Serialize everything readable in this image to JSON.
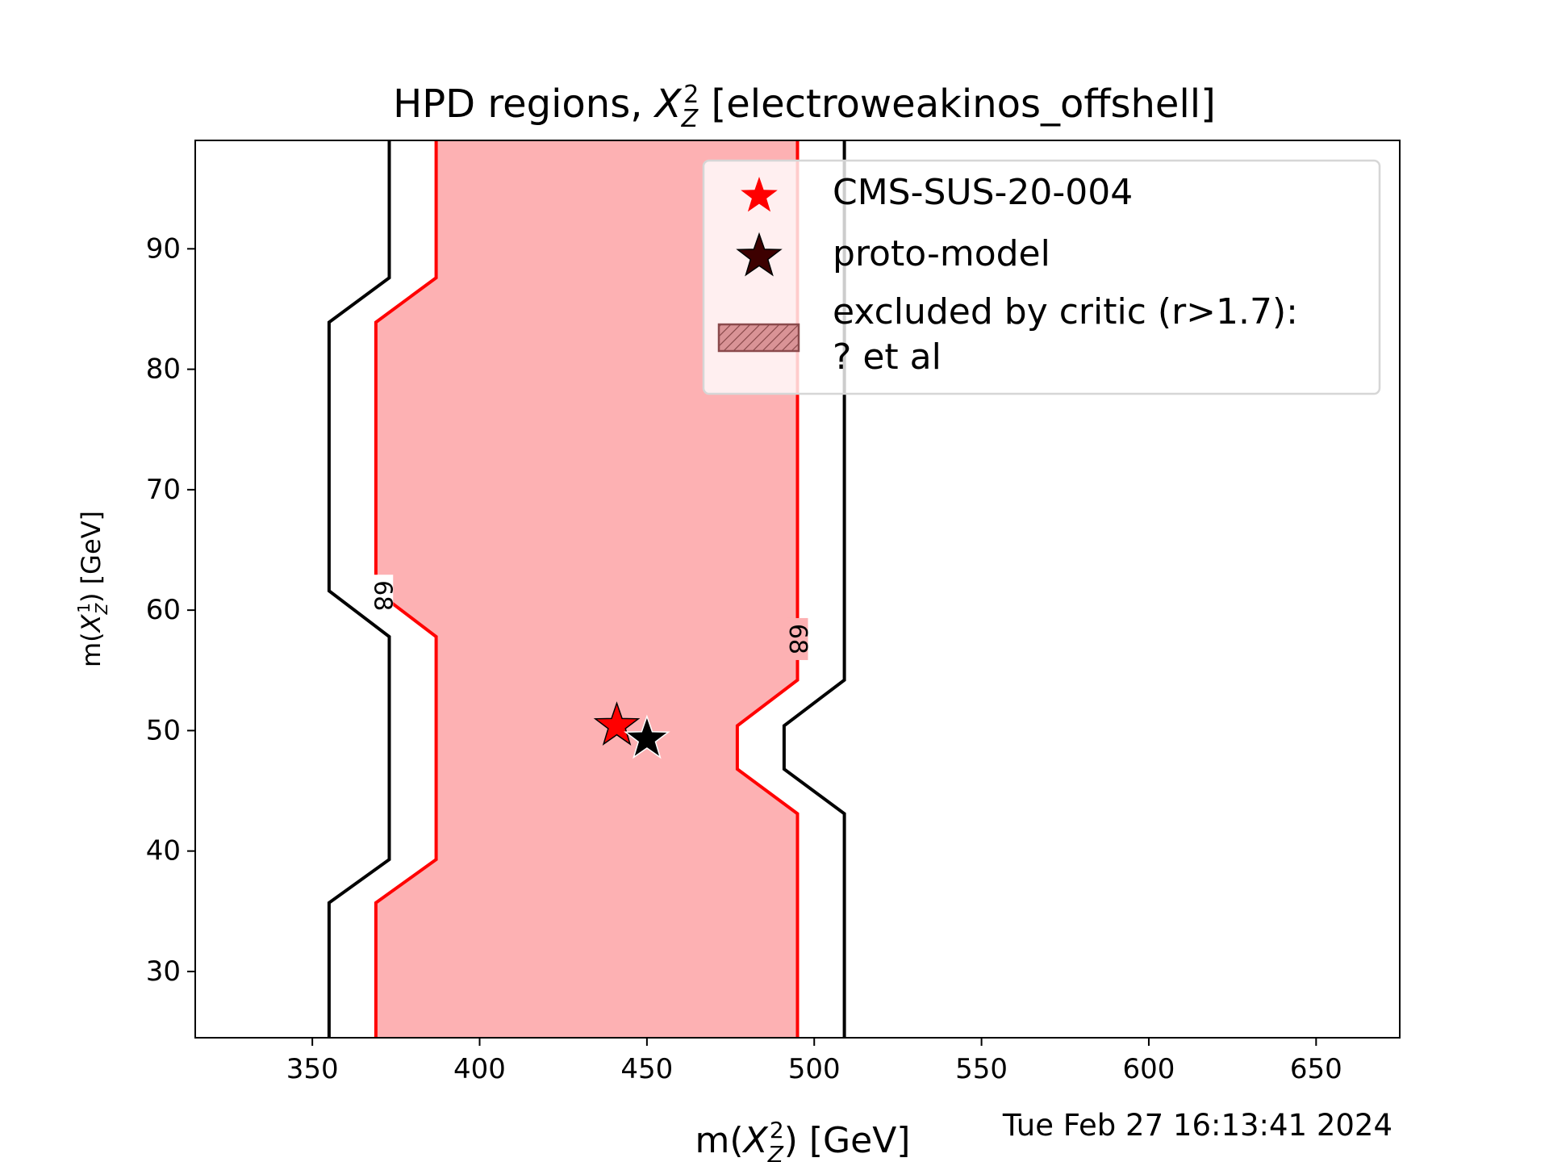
{
  "chart_data": {
    "type": "contour",
    "title_prefix": "HPD regions, ",
    "title_symbol": "X",
    "title_sub": "Z",
    "title_sup": "2",
    "title_suffix": " [electroweakinos_offshell]",
    "xlabel_prefix": "m(",
    "xlabel_symbol": "X",
    "xlabel_sub": "Z",
    "xlabel_sup": "2",
    "xlabel_suffix": ") [GeV]",
    "ylabel_prefix": "m(",
    "ylabel_symbol": "X",
    "ylabel_sub": "Z",
    "ylabel_sup": "1",
    "ylabel_suffix": ") [GeV]",
    "xlim": [
      315,
      675
    ],
    "ylim": [
      24.5,
      99
    ],
    "xticks": [
      350,
      400,
      450,
      500,
      550,
      600,
      650
    ],
    "yticks": [
      30,
      40,
      50,
      60,
      70,
      80,
      90
    ],
    "colors": {
      "fill_68": "#fdb1b3",
      "line_68": "#ff0000",
      "line_outer": "#000000",
      "star_cms": "#ff0000",
      "star_proto": "#000000",
      "legend_proto": "#3d0000",
      "hatch": "#c97a7c",
      "timestamp": "#808080"
    },
    "contours": [
      {
        "name": "68",
        "left": [
          [
            369,
            24.5
          ],
          [
            369,
            35.7
          ],
          [
            387,
            39.3
          ],
          [
            387,
            57.8
          ],
          [
            369,
            61.6
          ],
          [
            369,
            83.9
          ],
          [
            387,
            87.6
          ],
          [
            387,
            99
          ]
        ],
        "right": [
          [
            495,
            24.5
          ],
          [
            495,
            43.1
          ],
          [
            477,
            46.8
          ],
          [
            477,
            50.4
          ],
          [
            495,
            54.2
          ],
          [
            495,
            99
          ]
        ],
        "labels": [
          {
            "text": "68",
            "x": 371,
            "y": 61.2,
            "rotation": 90
          },
          {
            "text": "68",
            "x": 495,
            "y": 57.6,
            "rotation": 90
          }
        ]
      },
      {
        "name": "outer",
        "left": [
          [
            355,
            24.5
          ],
          [
            355,
            35.7
          ],
          [
            373,
            39.3
          ],
          [
            373,
            57.8
          ],
          [
            355,
            61.6
          ],
          [
            355,
            83.9
          ],
          [
            373,
            87.6
          ],
          [
            373,
            99
          ]
        ],
        "right": [
          [
            509,
            24.5
          ],
          [
            509,
            43.1
          ],
          [
            491,
            46.8
          ],
          [
            491,
            50.4
          ],
          [
            509,
            54.2
          ],
          [
            509,
            99
          ]
        ]
      }
    ],
    "points": [
      {
        "name": "CMS-SUS-20-004",
        "x": 441,
        "y": 50.4
      },
      {
        "name": "proto-model",
        "x": 450,
        "y": 49.3
      }
    ],
    "legend": {
      "placement": "upper-right",
      "entries": [
        "CMS-SUS-20-004",
        "proto-model",
        "excluded by critic (r>1.7):",
        "? et al"
      ]
    },
    "timestamp": "Tue Feb 27 16:13:41 2024"
  }
}
